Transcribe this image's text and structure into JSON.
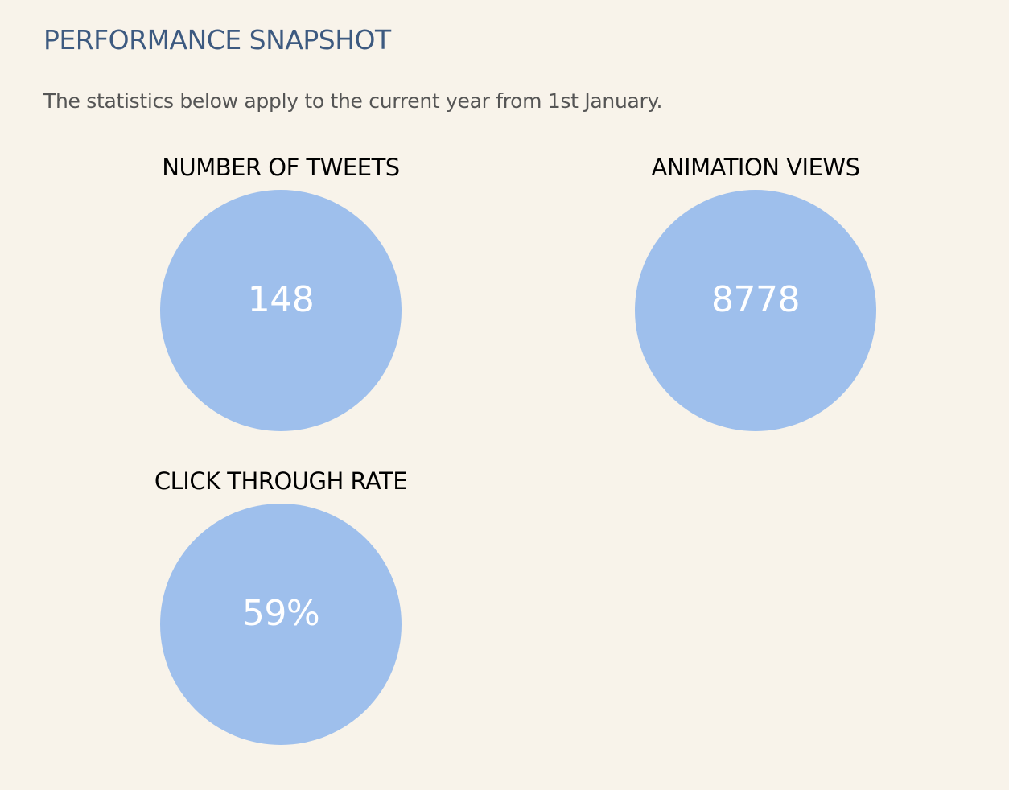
{
  "header": {
    "title": "PERFORMANCE SNAPSHOT",
    "subtitle": "The statistics below apply to the current year from 1st January."
  },
  "stats": [
    {
      "label": "NUMBER OF TWEETS",
      "value": "148"
    },
    {
      "label": "ANIMATION VIEWS",
      "value": "8778"
    },
    {
      "label": "CLICK THROUGH RATE",
      "value": "59%"
    }
  ],
  "colors": {
    "background": "#f8f3ea",
    "title": "#3d5a80",
    "circle": "#9ebfec",
    "value_text": "#ffffff"
  }
}
